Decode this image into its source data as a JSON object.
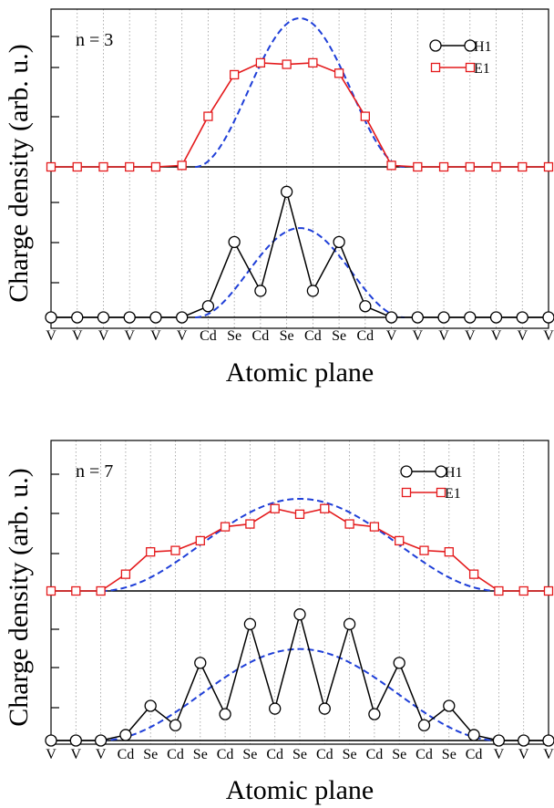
{
  "chart_data": [
    {
      "type": "line",
      "ylabel": "Charge density (arb. u.)",
      "xlabel": "Atomic plane",
      "annotation": "n = 3",
      "x_labels": [
        "V",
        "V",
        "V",
        "V",
        "V",
        "V",
        "Cd",
        "Se",
        "Cd",
        "Se",
        "Cd",
        "Se",
        "Cd",
        "V",
        "V",
        "V",
        "V",
        "V",
        "V",
        "V"
      ],
      "legend": {
        "placement": "top-right",
        "entries": [
          "H1",
          "E1"
        ]
      },
      "grid": "vertical-dotted",
      "panels": {
        "E1": {
          "ylim": [
            0,
            1
          ],
          "values": [
            0,
            0,
            0,
            0,
            0,
            0.01,
            0.34,
            0.62,
            0.7,
            0.69,
            0.7,
            0.63,
            0.34,
            0.01,
            0,
            0,
            0,
            0,
            0,
            0
          ],
          "envelope_peak": 1.0,
          "envelope_half_width": 4.0
        },
        "H1": {
          "ylim": [
            0,
            1
          ],
          "values": [
            0,
            0,
            0,
            0,
            0,
            0,
            0.08,
            0.54,
            0.19,
            0.9,
            0.19,
            0.54,
            0.08,
            0,
            0,
            0,
            0,
            0,
            0,
            0
          ],
          "envelope_peak": 0.64,
          "envelope_half_width": 4.0
        }
      }
    },
    {
      "type": "line",
      "ylabel": "Charge density (arb. u.)",
      "xlabel": "Atomic plane",
      "annotation": "n = 7",
      "x_labels": [
        "V",
        "V",
        "V",
        "Cd",
        "Se",
        "Cd",
        "Se",
        "Cd",
        "Se",
        "Cd",
        "Se",
        "Cd",
        "Se",
        "Cd",
        "Se",
        "Cd",
        "Se",
        "Cd",
        "V",
        "V",
        "V"
      ],
      "legend": {
        "placement": "top-right",
        "entries": [
          "H1",
          "E1"
        ]
      },
      "grid": "vertical-dotted",
      "panels": {
        "E1": {
          "ylim": [
            0,
            1
          ],
          "values": [
            0,
            0,
            0,
            0.12,
            0.28,
            0.29,
            0.36,
            0.46,
            0.48,
            0.59,
            0.55,
            0.59,
            0.48,
            0.46,
            0.36,
            0.29,
            0.28,
            0.12,
            0,
            0,
            0
          ],
          "envelope_peak": 0.66,
          "envelope_half_width": 8.0
        },
        "H1": {
          "ylim": [
            0,
            1
          ],
          "values": [
            0,
            0,
            0,
            0.04,
            0.25,
            0.11,
            0.56,
            0.19,
            0.84,
            0.23,
            0.91,
            0.23,
            0.84,
            0.19,
            0.56,
            0.11,
            0.25,
            0.04,
            0,
            0,
            0
          ],
          "envelope_peak": 0.66,
          "envelope_half_width": 8.0
        }
      }
    }
  ]
}
